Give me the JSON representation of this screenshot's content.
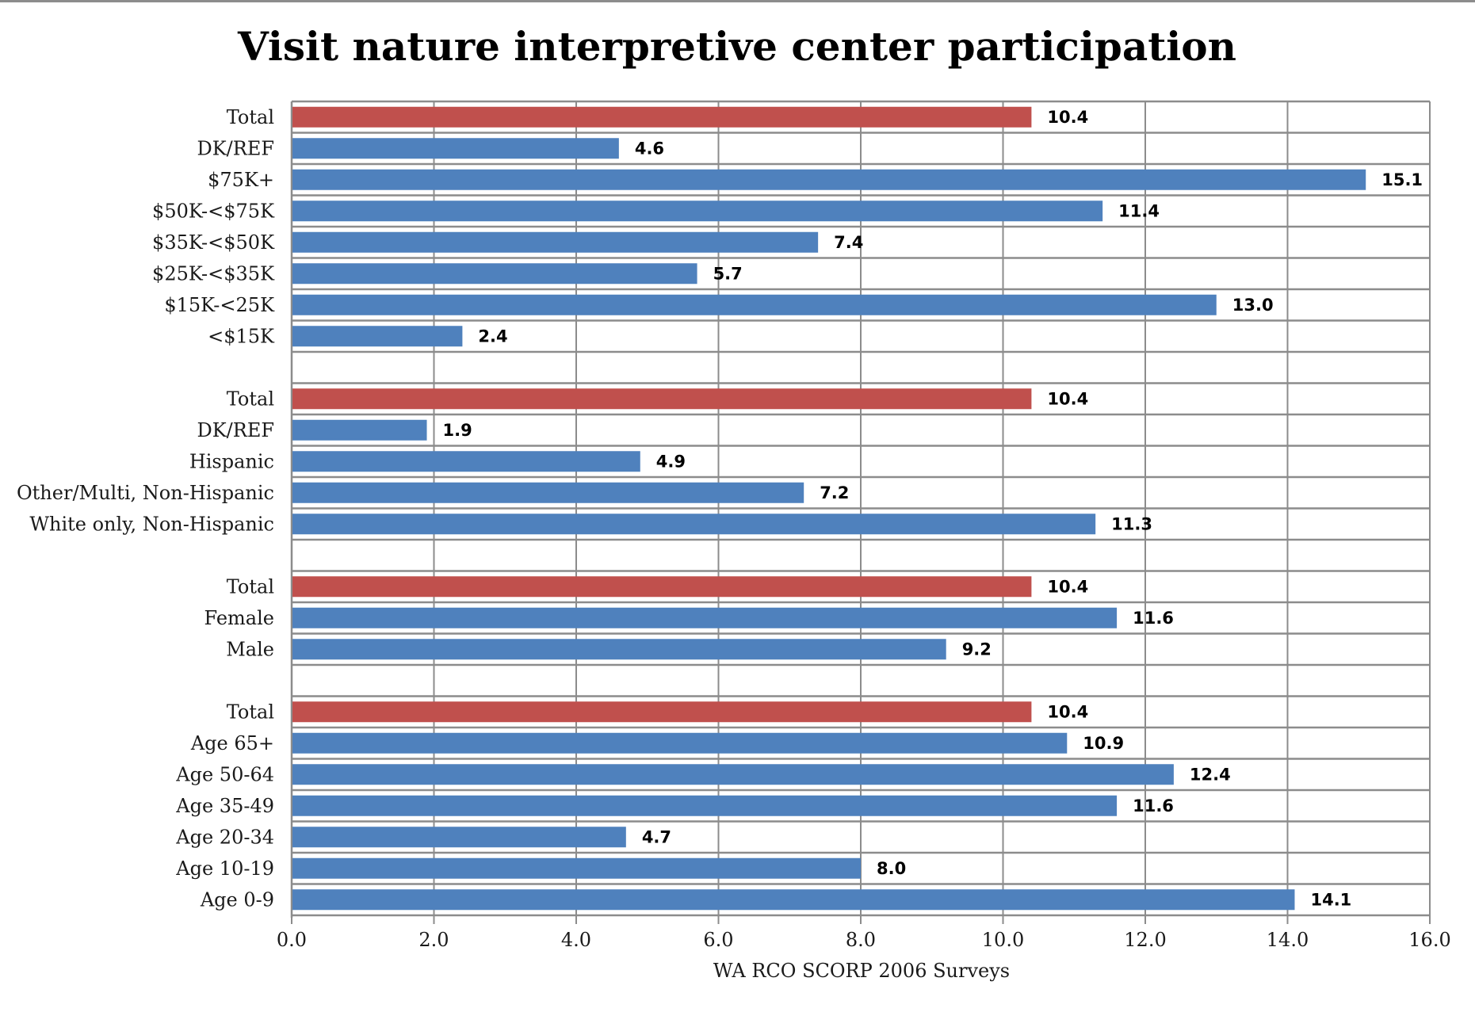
{
  "chart_data": {
    "type": "bar",
    "orientation": "horizontal",
    "title": "Visit nature interpretive center participation",
    "xlabel": "WA RCO SCORP 2006 Surveys",
    "xlim": [
      0,
      16
    ],
    "xticks": [
      "0.0",
      "2.0",
      "4.0",
      "6.0",
      "8.0",
      "10.0",
      "12.0",
      "14.0",
      "16.0"
    ],
    "grid": true,
    "colors": {
      "total": "#c0504d",
      "default": "#4f81bd"
    },
    "groups": [
      {
        "bars": [
          {
            "label": "Total",
            "value": 10.4,
            "total": true
          },
          {
            "label": "DK/REF",
            "value": 4.6
          },
          {
            "label": "$75K+",
            "value": 15.1
          },
          {
            "label": "$50K-<$75K",
            "value": 11.4
          },
          {
            "label": "$35K-<$50K",
            "value": 7.4
          },
          {
            "label": "$25K-<$35K",
            "value": 5.7
          },
          {
            "label": "$15K-<25K",
            "value": 13.0
          },
          {
            "label": "<$15K",
            "value": 2.4
          }
        ]
      },
      {
        "bars": [
          {
            "label": "Total",
            "value": 10.4,
            "total": true
          },
          {
            "label": "DK/REF",
            "value": 1.9
          },
          {
            "label": "Hispanic",
            "value": 4.9
          },
          {
            "label": "Other/Multi, Non-Hispanic",
            "value": 7.2
          },
          {
            "label": "White only, Non-Hispanic",
            "value": 11.3
          }
        ]
      },
      {
        "bars": [
          {
            "label": "Total",
            "value": 10.4,
            "total": true
          },
          {
            "label": "Female",
            "value": 11.6
          },
          {
            "label": "Male",
            "value": 9.2
          }
        ]
      },
      {
        "bars": [
          {
            "label": "Total",
            "value": 10.4,
            "total": true
          },
          {
            "label": "Age 65+",
            "value": 10.9
          },
          {
            "label": "Age 50-64",
            "value": 12.4
          },
          {
            "label": "Age 35-49",
            "value": 11.6
          },
          {
            "label": "Age 20-34",
            "value": 4.7
          },
          {
            "label": "Age 10-19",
            "value": 8.0
          },
          {
            "label": "Age 0-9",
            "value": 14.1
          }
        ]
      }
    ]
  }
}
